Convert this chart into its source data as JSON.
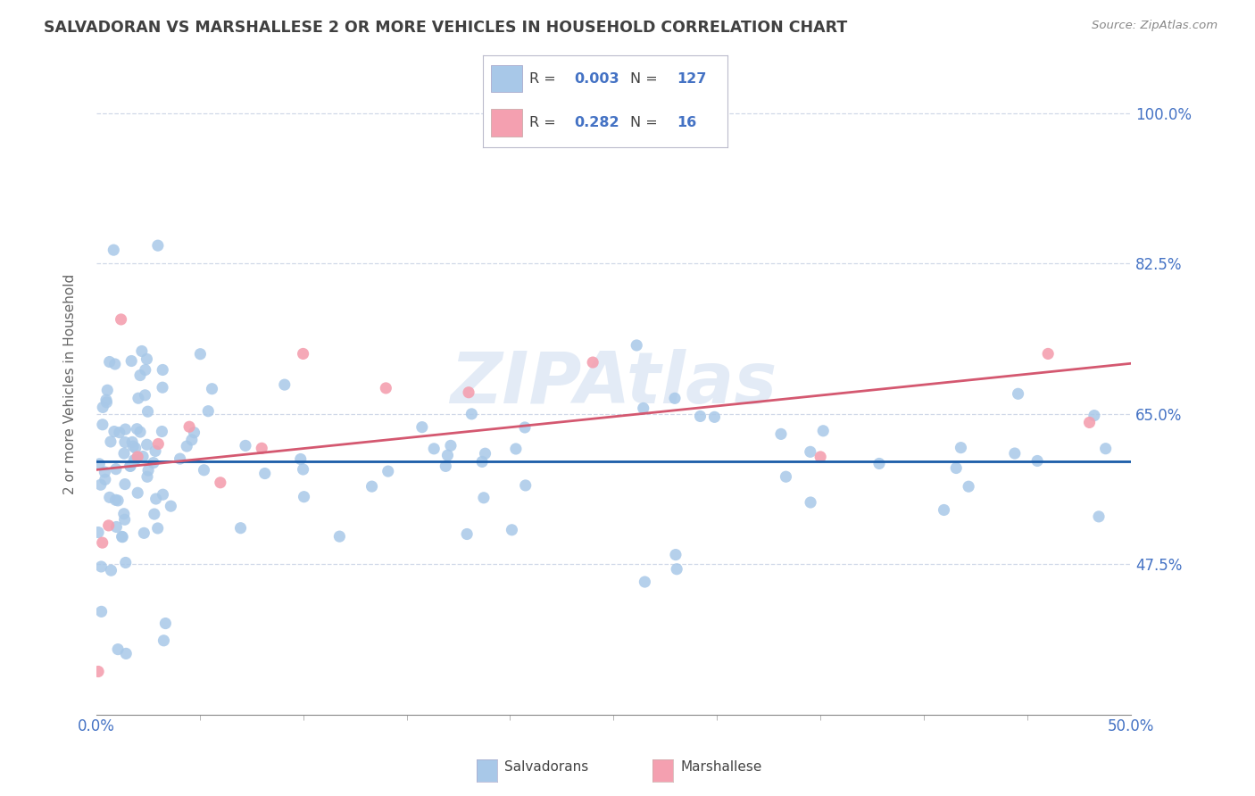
{
  "title": "SALVADORAN VS MARSHALLESE 2 OR MORE VEHICLES IN HOUSEHOLD CORRELATION CHART",
  "source": "Source: ZipAtlas.com",
  "ylabel": "2 or more Vehicles in Household",
  "xlim": [
    0.0,
    50.0
  ],
  "ylim": [
    30.0,
    107.0
  ],
  "xtick_major": [
    0.0,
    50.0
  ],
  "xtick_minor": [
    5.0,
    10.0,
    15.0,
    20.0,
    25.0,
    30.0,
    35.0,
    40.0,
    45.0
  ],
  "yticks": [
    47.5,
    65.0,
    82.5,
    100.0
  ],
  "ytick_labels": [
    "47.5%",
    "65.0%",
    "82.5%",
    "100.0%"
  ],
  "xtick_major_labels": [
    "0.0%",
    "50.0%"
  ],
  "salvadoran_color": "#a8c8e8",
  "marshallese_color": "#f4a0b0",
  "salvadoran_line_color": "#1a5ca8",
  "marshallese_line_color": "#d45870",
  "R_salvadoran": "0.003",
  "N_salvadoran": "127",
  "R_marshallese": "0.282",
  "N_marshallese": "16",
  "background_color": "#ffffff",
  "grid_color": "#d0d8e8",
  "axis_color": "#4472c4",
  "title_color": "#404040",
  "watermark": "ZIPAtlas",
  "watermark_color": "#c8d8ee",
  "legend_label_salvadoran": "Salvadorans",
  "legend_label_marshallese": "Marshallese",
  "legend_swatch_blue": "#a8c8e8",
  "legend_swatch_pink": "#f4a0b0",
  "legend_text_color": "#404040",
  "legend_value_color": "#4472c4"
}
